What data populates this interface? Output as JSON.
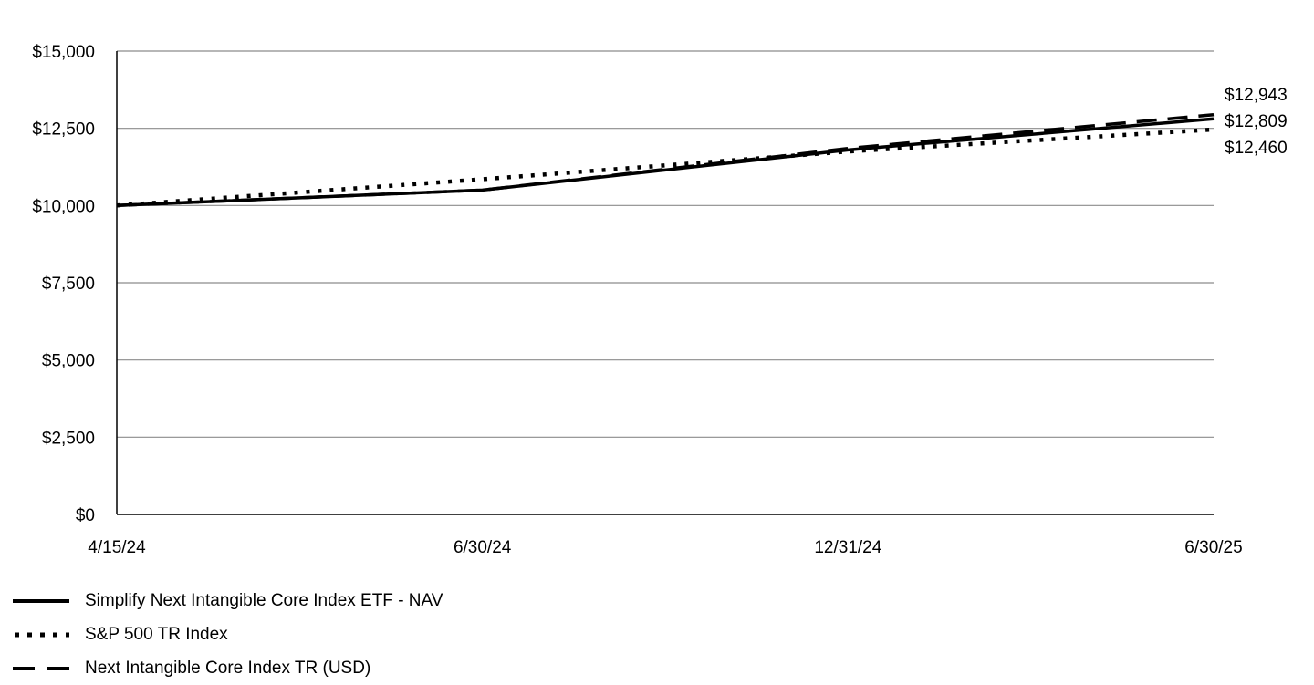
{
  "chart_data": {
    "type": "line",
    "title": "",
    "xlabel": "",
    "ylabel": "",
    "x_ticks": [
      "4/15/24",
      "6/30/24",
      "12/31/24",
      "6/30/25"
    ],
    "y_ticks": [
      "$0",
      "$2,500",
      "$5,000",
      "$7,500",
      "$10,000",
      "$12,500",
      "$15,000"
    ],
    "ylim": [
      0,
      15000
    ],
    "grid": "horizontal",
    "legend_position": "bottom-left",
    "series": [
      {
        "name": "Simplify Next Intangible Core Index ETF - NAV",
        "style": "solid",
        "color": "#000000",
        "x": [
          "4/15/24",
          "6/30/24",
          "12/31/24",
          "6/30/25"
        ],
        "values": [
          10000,
          10500,
          11800,
          12809
        ],
        "end_label": "$12,809"
      },
      {
        "name": "S&P 500 TR Index",
        "style": "dotted",
        "color": "#000000",
        "x": [
          "4/15/24",
          "6/30/24",
          "12/31/24",
          "6/30/25"
        ],
        "values": [
          10000,
          10850,
          11750,
          12460
        ],
        "end_label": "$12,460"
      },
      {
        "name": "Next Intangible Core Index TR (USD)",
        "style": "dashed",
        "color": "#000000",
        "x": [
          "4/15/24",
          "6/30/24",
          "12/31/24",
          "6/30/25"
        ],
        "values": [
          10000,
          10500,
          11850,
          12943
        ],
        "end_label": "$12,943"
      }
    ]
  }
}
